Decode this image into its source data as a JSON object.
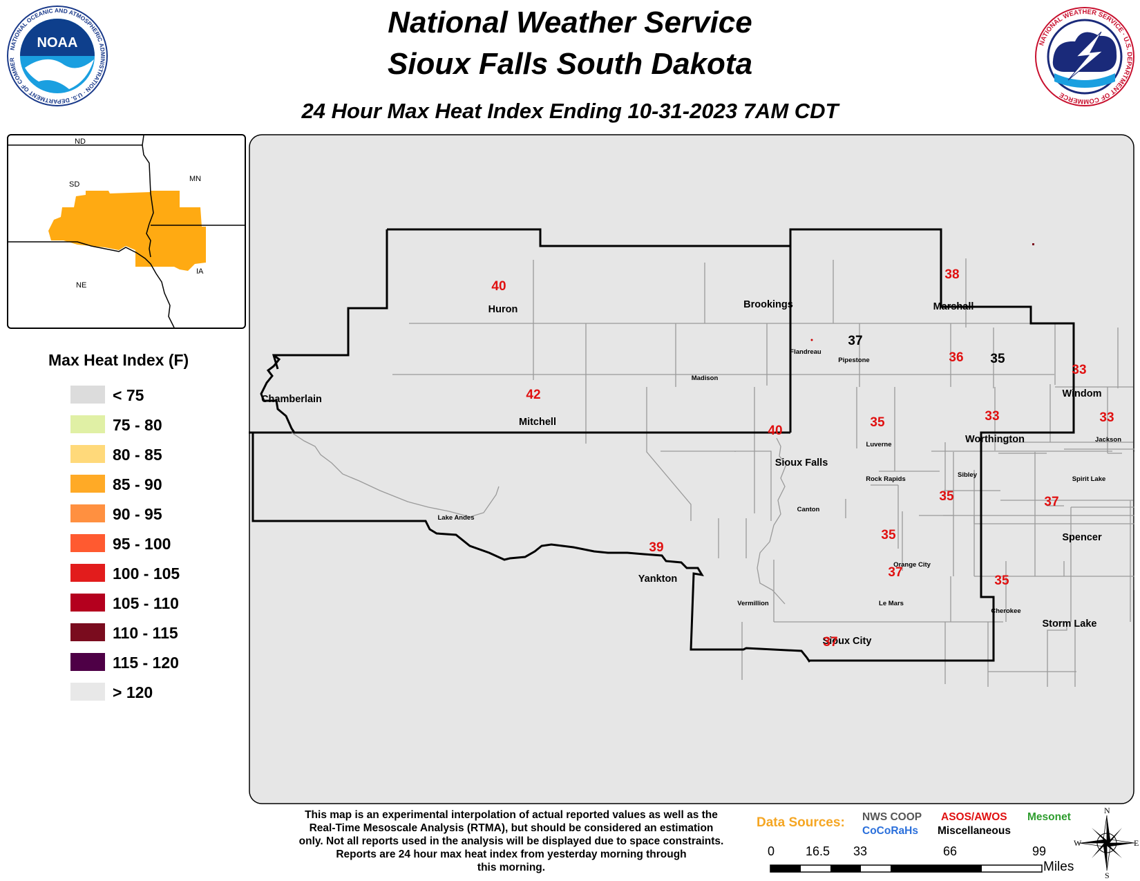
{
  "header": {
    "line1": "National Weather Service",
    "line2": "Sioux Falls South Dakota",
    "subtitle": "24 Hour Max Heat Index Ending 10-31-2023 7AM CDT"
  },
  "logos": {
    "noaa": {
      "text": "NOAA",
      "ring": "NATIONAL OCEANIC AND ATMOSPHERIC ADMINISTRATION · U.S. DEPARTMENT OF COMMERCE"
    },
    "nws": {
      "ring": "NATIONAL WEATHER SERVICE · U.S. DEPARTMENT OF COMMERCE"
    }
  },
  "inset": {
    "states": [
      "ND",
      "SD",
      "MN",
      "NE",
      "IA"
    ],
    "fill_color": "#ffaa12"
  },
  "legend": {
    "title": "Max Heat Index (F)",
    "items": [
      {
        "label": "< 75",
        "color": "#dcdcdc"
      },
      {
        "label": "75 - 80",
        "color": "#e0f0a5"
      },
      {
        "label": "80 - 85",
        "color": "#ffd97a"
      },
      {
        "label": "85 - 90",
        "color": "#ffaa26"
      },
      {
        "label": "90 - 95",
        "color": "#ff9040"
      },
      {
        "label": "95 - 100",
        "color": "#ff5a30"
      },
      {
        "label": "100 - 105",
        "color": "#e21c1c"
      },
      {
        "label": "105 - 110",
        "color": "#b4001e"
      },
      {
        "label": "110 - 115",
        "color": "#7a0c1e"
      },
      {
        "label": "115 - 120",
        "color": "#4e0046"
      },
      {
        "label": "> 120",
        "color": "#e8e8e8"
      }
    ]
  },
  "map": {
    "background": "#e6e6e6",
    "cities": [
      {
        "name": "Chamberlain",
        "size": "large"
      },
      {
        "name": "Huron",
        "size": "large"
      },
      {
        "name": "Brookings",
        "size": "large"
      },
      {
        "name": "Marshall",
        "size": "large"
      },
      {
        "name": "Flandreau",
        "size": "small"
      },
      {
        "name": "Pipestone",
        "size": "small"
      },
      {
        "name": "Madison",
        "size": "small"
      },
      {
        "name": "Windom",
        "size": "large"
      },
      {
        "name": "Mitchell",
        "size": "large"
      },
      {
        "name": "Luverne",
        "size": "small"
      },
      {
        "name": "Worthington",
        "size": "large"
      },
      {
        "name": "Jackson",
        "size": "small"
      },
      {
        "name": "Sioux Falls",
        "size": "large"
      },
      {
        "name": "Rock Rapids",
        "size": "small"
      },
      {
        "name": "Sibley",
        "size": "small"
      },
      {
        "name": "Spirit Lake",
        "size": "small"
      },
      {
        "name": "Lake Andes",
        "size": "small"
      },
      {
        "name": "Canton",
        "size": "small"
      },
      {
        "name": "Spencer",
        "size": "large"
      },
      {
        "name": "Orange City",
        "size": "small"
      },
      {
        "name": "Yankton",
        "size": "large"
      },
      {
        "name": "Vermillion",
        "size": "small"
      },
      {
        "name": "Le Mars",
        "size": "small"
      },
      {
        "name": "Cherokee",
        "size": "small"
      },
      {
        "name": "Storm Lake",
        "size": "large"
      },
      {
        "name": "Sioux City",
        "size": "large"
      }
    ],
    "observations": [
      {
        "value": "40",
        "source": "ASOS/AWOS"
      },
      {
        "value": "38",
        "source": "ASOS/AWOS"
      },
      {
        "value": "37",
        "source": "NWS COOP"
      },
      {
        "value": "36",
        "source": "ASOS/AWOS"
      },
      {
        "value": "35",
        "source": "NWS COOP"
      },
      {
        "value": "33",
        "source": "ASOS/AWOS"
      },
      {
        "value": "42",
        "source": "ASOS/AWOS"
      },
      {
        "value": "35",
        "source": "ASOS/AWOS"
      },
      {
        "value": "33",
        "source": "ASOS/AWOS"
      },
      {
        "value": "33",
        "source": "ASOS/AWOS"
      },
      {
        "value": "40",
        "source": "ASOS/AWOS"
      },
      {
        "value": "35",
        "source": "ASOS/AWOS"
      },
      {
        "value": "37",
        "source": "ASOS/AWOS"
      },
      {
        "value": "35",
        "source": "ASOS/AWOS"
      },
      {
        "value": "39",
        "source": "ASOS/AWOS"
      },
      {
        "value": "37",
        "source": "ASOS/AWOS"
      },
      {
        "value": "35",
        "source": "ASOS/AWOS"
      },
      {
        "value": "37",
        "source": "ASOS/AWOS"
      }
    ]
  },
  "footer": {
    "disclaimer": [
      "This map is an experimental interpolation of actual reported values as well as the",
      "Real-Time Mesoscale Analysis (RTMA), but should be considered an estimation",
      "only. Not all reports used in the analysis will be displayed due to space constraints.",
      "Reports are 24 hour max heat index from yesterday morning through",
      "this morning."
    ],
    "data_sources_label": "Data Sources:",
    "sources": [
      {
        "label": "NWS COOP",
        "color": "#555555"
      },
      {
        "label": "CoCoRaHs",
        "color": "#2a6fdb"
      },
      {
        "label": "ASOS/AWOS",
        "color": "#e01010"
      },
      {
        "label": "Miscellaneous",
        "color": "#000000"
      },
      {
        "label": "Mesonet",
        "color": "#2e9d2e"
      }
    ],
    "scale": {
      "ticks": [
        "0",
        "16.5",
        "33",
        "66",
        "99"
      ],
      "unit": "Miles"
    },
    "compass": {
      "n": "N",
      "s": "S",
      "e": "E",
      "w": "W"
    }
  }
}
